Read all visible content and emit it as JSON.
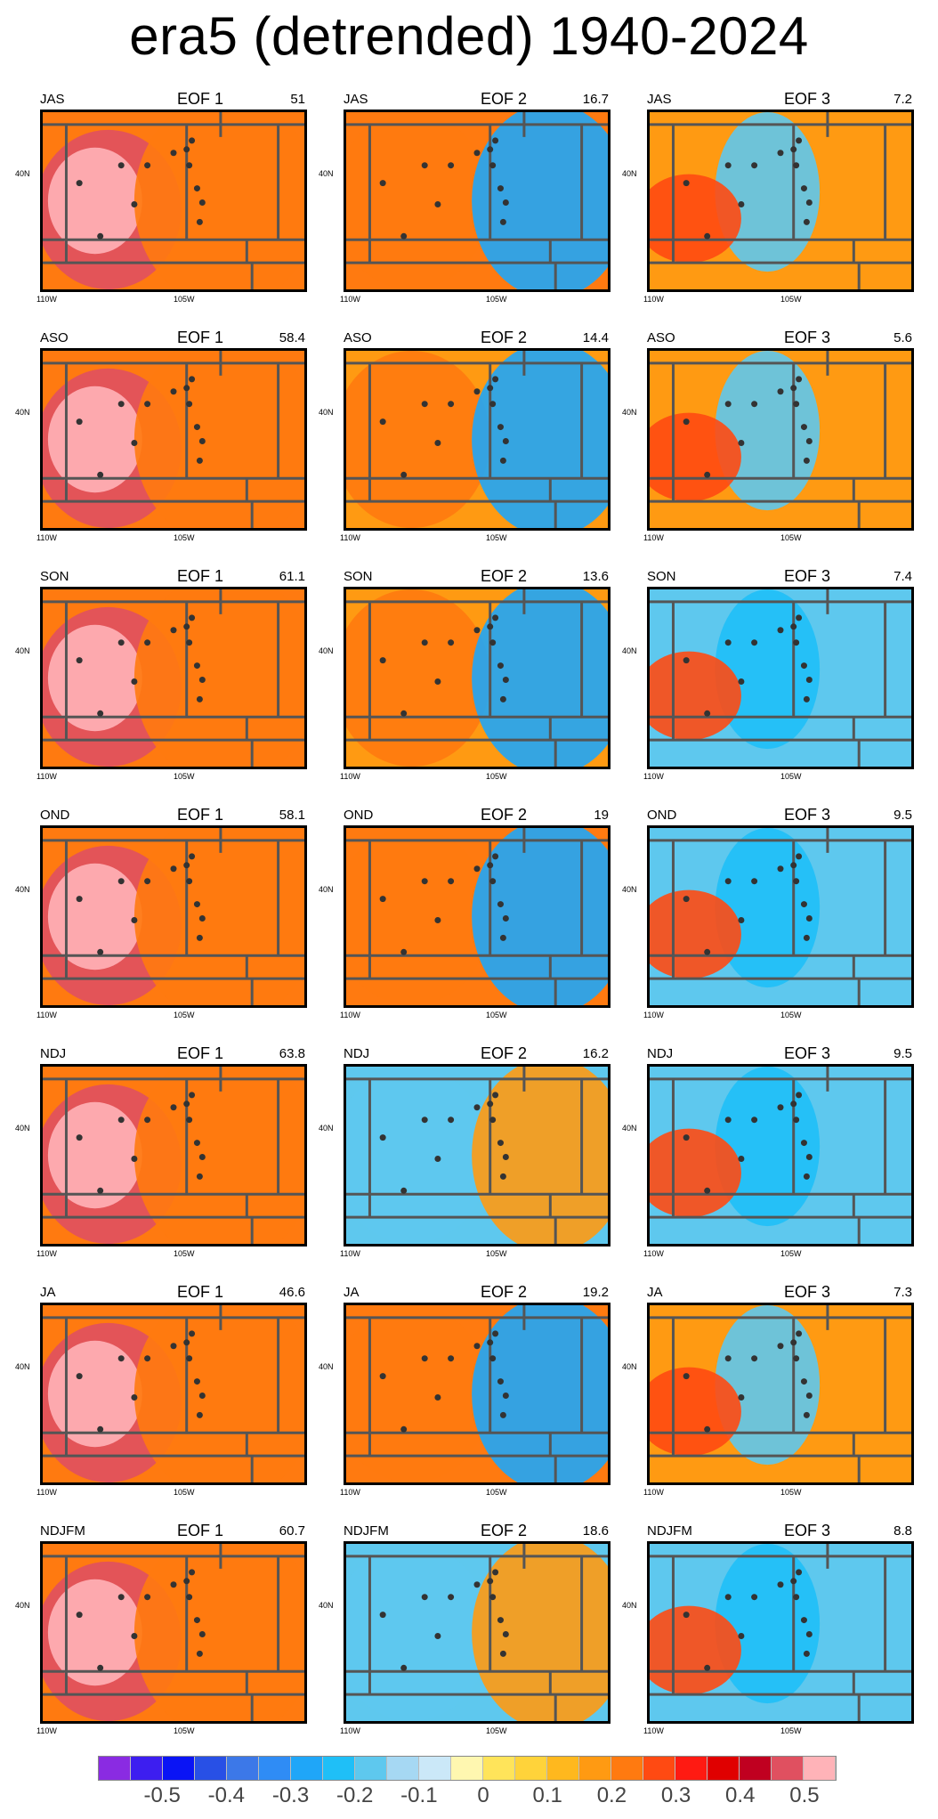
{
  "title": "era5 (detrended) 1940-2024",
  "tick_labels": {
    "lon_110": "110W",
    "lon_105": "105W",
    "lat_40": "40N"
  },
  "eof_labels": [
    "EOF 1",
    "EOF 2",
    "EOF 3"
  ],
  "rows": [
    {
      "season": "JAS",
      "variance": [
        "51",
        "16.7",
        "7.2"
      ],
      "pattern": [
        0.45,
        0.25,
        0.2
      ]
    },
    {
      "season": "ASO",
      "variance": [
        "58.4",
        "14.4",
        "5.6"
      ],
      "pattern": [
        0.45,
        0.2,
        0.2
      ]
    },
    {
      "season": "SON",
      "variance": [
        "61.1",
        "13.6",
        "7.4"
      ],
      "pattern": [
        0.45,
        0.2,
        -0.15
      ]
    },
    {
      "season": "OND",
      "variance": [
        "58.1",
        "19",
        "9.5"
      ],
      "pattern": [
        0.45,
        0.25,
        -0.15
      ]
    },
    {
      "season": "NDJ",
      "variance": [
        "63.8",
        "16.2",
        "9.5"
      ],
      "pattern": [
        0.45,
        -0.15,
        -0.15
      ]
    },
    {
      "season": "JA",
      "variance": [
        "46.6",
        "19.2",
        "7.3"
      ],
      "pattern": [
        0.45,
        0.25,
        0.2
      ]
    },
    {
      "season": "NDJFM",
      "variance": [
        "60.7",
        "18.6",
        "8.8"
      ],
      "pattern": [
        0.45,
        -0.15,
        -0.15
      ]
    }
  ],
  "colorbar": {
    "labels": [
      "-0.5",
      "-0.4",
      "-0.3",
      "-0.2",
      "-0.1",
      "0",
      "0.1",
      "0.2",
      "0.3",
      "0.4",
      "0.5"
    ],
    "colors": [
      "#8a2be2",
      "#3d1ef0",
      "#0a14f5",
      "#2850e6",
      "#3c78e8",
      "#2f8cf5",
      "#1fa6f8",
      "#1fbff7",
      "#5ec8ee",
      "#a6d8f3",
      "#cbe8f8",
      "#fff7b0",
      "#ffe45a",
      "#ffd33a",
      "#ffb81e",
      "#ff9a12",
      "#ff7a10",
      "#ff4a12",
      "#ff1a12",
      "#e00000",
      "#c00020",
      "#e05060",
      "#ffb3b8"
    ]
  },
  "dot_color": "#333333",
  "frame_color": "#555555"
}
